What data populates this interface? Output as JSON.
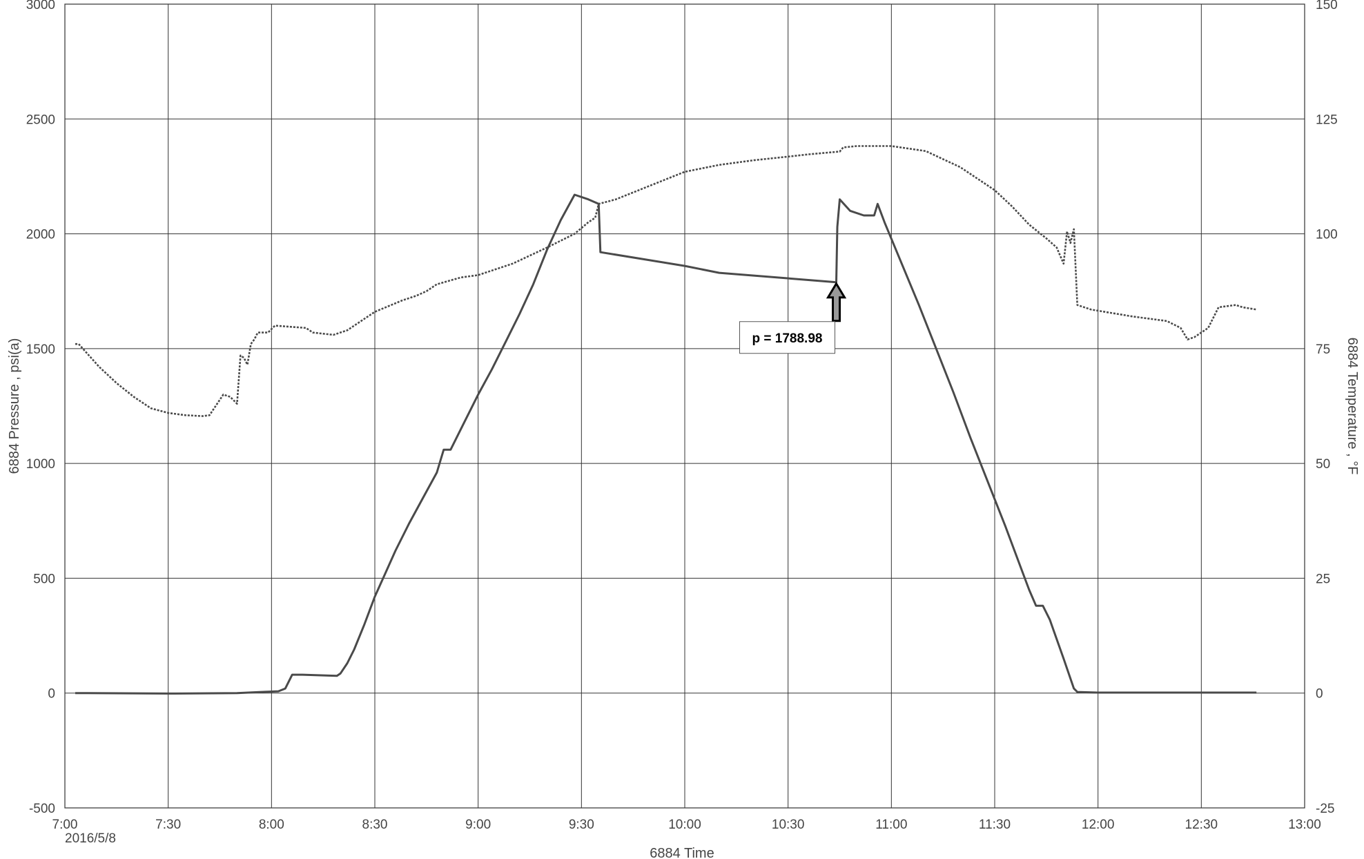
{
  "chart_data": {
    "type": "line",
    "date_label": "2016/5/8",
    "xlabel": "6884 Time",
    "ylabel": "6884 Pressure , psi(a)",
    "y2label": "6884 Temperature , °F",
    "xlim": [
      "7:00",
      "13:00"
    ],
    "ylim": [
      -500,
      3000
    ],
    "y2lim": [
      -25,
      150
    ],
    "x_ticks": [
      "7:00",
      "7:30",
      "8:00",
      "8:30",
      "9:00",
      "9:30",
      "10:00",
      "10:30",
      "11:00",
      "11:30",
      "12:00",
      "12:30",
      "13:00"
    ],
    "y_ticks": [
      "-500",
      "0",
      "500",
      "1000",
      "1500",
      "2000",
      "2500",
      "3000"
    ],
    "y2_ticks": [
      "-25",
      "0",
      "25",
      "50",
      "75",
      "100",
      "125",
      "150"
    ],
    "grid": true,
    "annotation": {
      "label": "p = 1788.98",
      "time": "10:44",
      "value": 1788.98
    },
    "series": [
      {
        "axis": "left",
        "style": "solid",
        "color": "#4a4a4a",
        "points": [
          [
            "7:03",
            0
          ],
          [
            "7:30",
            -2
          ],
          [
            "7:50",
            0
          ],
          [
            "7:57",
            5
          ],
          [
            "8:02",
            8
          ],
          [
            "8:04",
            20
          ],
          [
            "8:06",
            80
          ],
          [
            "8:09",
            80
          ],
          [
            "8:19",
            75
          ],
          [
            "8:20",
            85
          ],
          [
            "8:22",
            130
          ],
          [
            "8:24",
            190
          ],
          [
            "8:27",
            300
          ],
          [
            "8:30",
            420
          ],
          [
            "8:33",
            520
          ],
          [
            "8:36",
            620
          ],
          [
            "8:40",
            740
          ],
          [
            "8:44",
            850
          ],
          [
            "8:48",
            960
          ],
          [
            "8:50",
            1060
          ],
          [
            "8:52",
            1060
          ],
          [
            "8:56",
            1180
          ],
          [
            "9:00",
            1300
          ],
          [
            "9:04",
            1410
          ],
          [
            "9:08",
            1530
          ],
          [
            "9:12",
            1650
          ],
          [
            "9:16",
            1780
          ],
          [
            "9:20",
            1930
          ],
          [
            "9:24",
            2060
          ],
          [
            "9:28",
            2170
          ],
          [
            "9:32",
            2150
          ],
          [
            "9:35",
            2130
          ],
          [
            "9:35.5",
            1920
          ],
          [
            "10:00",
            1860
          ],
          [
            "10:10",
            1830
          ],
          [
            "10:44",
            1789
          ],
          [
            "10:44.3",
            2030
          ],
          [
            "10:45",
            2150
          ],
          [
            "10:48",
            2100
          ],
          [
            "10:52",
            2080
          ],
          [
            "10:55",
            2080
          ],
          [
            "10:56",
            2130
          ],
          [
            "10:58",
            2050
          ],
          [
            "11:03",
            1870
          ],
          [
            "11:08",
            1690
          ],
          [
            "11:13",
            1500
          ],
          [
            "11:18",
            1310
          ],
          [
            "11:23",
            1110
          ],
          [
            "11:28",
            920
          ],
          [
            "11:33",
            730
          ],
          [
            "11:38",
            530
          ],
          [
            "11:40",
            450
          ],
          [
            "11:42",
            380
          ],
          [
            "11:44",
            380
          ],
          [
            "11:46",
            320
          ],
          [
            "11:50",
            150
          ],
          [
            "11:53",
            20
          ],
          [
            "11:54",
            5
          ],
          [
            "12:00",
            2
          ],
          [
            "12:30",
            2
          ],
          [
            "12:46",
            2
          ]
        ]
      },
      {
        "axis": "right",
        "style": "dashed",
        "color": "#4a4a4a",
        "points": [
          [
            "7:03",
            76
          ],
          [
            "7:04",
            76
          ],
          [
            "7:10",
            71
          ],
          [
            "7:15",
            67.5
          ],
          [
            "7:20",
            64.5
          ],
          [
            "7:25",
            62
          ],
          [
            "7:30",
            61
          ],
          [
            "7:35",
            60.5
          ],
          [
            "7:40",
            60.3
          ],
          [
            "7:42",
            60.5
          ],
          [
            "7:46",
            65
          ],
          [
            "7:48",
            64.5
          ],
          [
            "7:50",
            63
          ],
          [
            "7:51",
            73.5
          ],
          [
            "7:52",
            73
          ],
          [
            "7:53",
            71.5
          ],
          [
            "7:54",
            76
          ],
          [
            "7:55",
            77
          ],
          [
            "7:56",
            78.5
          ],
          [
            "7:59",
            78.5
          ],
          [
            "8:01",
            80
          ],
          [
            "8:10",
            79.5
          ],
          [
            "8:12",
            78.5
          ],
          [
            "8:18",
            78
          ],
          [
            "8:22",
            79
          ],
          [
            "8:30",
            83
          ],
          [
            "8:38",
            85.5
          ],
          [
            "8:42",
            86.5
          ],
          [
            "8:45",
            87.5
          ],
          [
            "8:48",
            89
          ],
          [
            "8:55",
            90.5
          ],
          [
            "9:00",
            91
          ],
          [
            "9:10",
            93.5
          ],
          [
            "9:20",
            97
          ],
          [
            "9:28",
            100
          ],
          [
            "9:32",
            102.5
          ],
          [
            "9:34",
            103.5
          ],
          [
            "9:35",
            106.5
          ],
          [
            "9:40",
            107.5
          ],
          [
            "9:50",
            110.5
          ],
          [
            "10:00",
            113.5
          ],
          [
            "10:10",
            115
          ],
          [
            "10:20",
            116
          ],
          [
            "10:30",
            116.8
          ],
          [
            "10:36",
            117.3
          ],
          [
            "10:42",
            117.7
          ],
          [
            "10:45",
            117.9
          ],
          [
            "10:46",
            118.8
          ],
          [
            "10:50",
            119.1
          ],
          [
            "11:00",
            119.1
          ],
          [
            "11:10",
            118
          ],
          [
            "11:20",
            114.5
          ],
          [
            "11:30",
            109.5
          ],
          [
            "11:35",
            106
          ],
          [
            "11:40",
            102
          ],
          [
            "11:45",
            99
          ],
          [
            "11:48",
            97
          ],
          [
            "11:50",
            93.5
          ],
          [
            "11:51",
            100.5
          ],
          [
            "11:52",
            98
          ],
          [
            "11:53",
            101
          ],
          [
            "11:54",
            84.5
          ],
          [
            "11:58",
            83.5
          ],
          [
            "12:10",
            82
          ],
          [
            "12:20",
            81
          ],
          [
            "12:24",
            79.5
          ],
          [
            "12:26",
            77
          ],
          [
            "12:28",
            77.5
          ],
          [
            "12:32",
            79.5
          ],
          [
            "12:35",
            84
          ],
          [
            "12:40",
            84.5
          ],
          [
            "12:42",
            84
          ],
          [
            "12:46",
            83.5
          ]
        ]
      }
    ]
  }
}
